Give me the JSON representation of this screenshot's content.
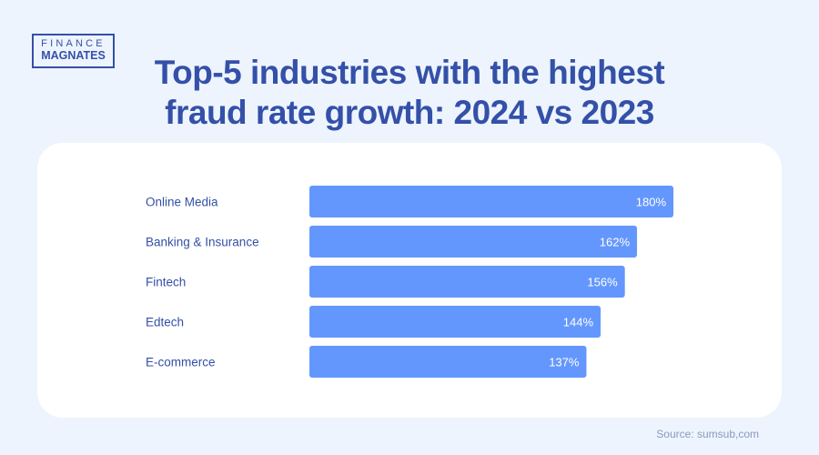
{
  "logo": {
    "line1": "FINANCE",
    "line2": "MAGNATES"
  },
  "title_lines": [
    "Top-5 industries with the highest",
    "fraud rate growth: 2024 vs 2023"
  ],
  "source": "Source: sumsub,com",
  "colors": {
    "bar": "#6497fd",
    "title": "#3450a8",
    "background": "#edf4fd"
  },
  "chart_data": {
    "type": "bar",
    "orientation": "horizontal",
    "title": "Top-5 industries with the highest fraud rate growth: 2024 vs 2023",
    "categories": [
      "Online Media",
      "Banking & Insurance",
      "Fintech",
      "Edtech",
      "E-commerce"
    ],
    "values": [
      180,
      162,
      156,
      144,
      137
    ],
    "value_labels": [
      "180%",
      "162%",
      "156%",
      "144%",
      "137%"
    ],
    "unit": "%",
    "grid": false,
    "legend": "none"
  }
}
